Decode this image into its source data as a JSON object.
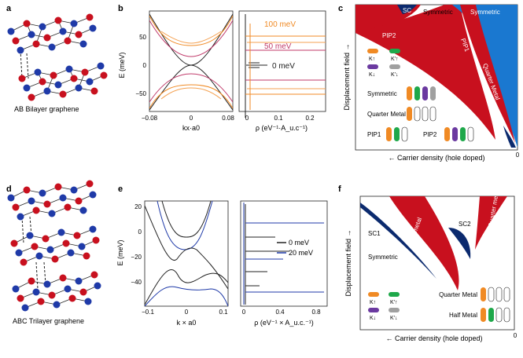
{
  "panels": {
    "a": {
      "label": "a",
      "caption": "AB Bilayer graphene"
    },
    "b": {
      "label": "b",
      "ylabel": "E (meV)",
      "xlabel_left": "kx·a0",
      "xlabel_right": "ρ (eV⁻¹·A_u.c⁻¹)",
      "yticks": [
        "50",
        "0",
        "−50"
      ],
      "xticks_left": [
        "−0.08",
        "0",
        "0.08"
      ],
      "xticks_right": [
        "0",
        "0.1",
        "0.2"
      ],
      "lines": [
        "100 meV",
        "50 meV",
        "0 meV"
      ]
    },
    "c": {
      "label": "c",
      "ylabel": "Displacement field →",
      "xlabel": "← Carrier density (hole doped)",
      "zero": "0",
      "regions": {
        "sc": "SC",
        "symmetric_top": "Symmetric",
        "symmetric_mid": "Symmetric",
        "pip2": "PIP2",
        "pip1": "PIP1",
        "quarter_metal": "Quarter Metal"
      },
      "legend": {
        "k_up": "K↑",
        "kp_up": "K'↑",
        "k_down": "K↓",
        "kp_down": "K'↓",
        "symmetric": "Symmetric",
        "quarter": "Quarter Metal",
        "pip1": "PIP1",
        "pip2": "PIP2"
      }
    },
    "d": {
      "label": "d",
      "caption": "ABC Trilayer graphene"
    },
    "e": {
      "label": "e",
      "ylabel": "E (meV)",
      "xlabel_left": "k × a0",
      "xlabel_right": "ρ (eV⁻¹ × A_u.c.⁻¹)",
      "yticks": [
        "20",
        "0",
        "−20",
        "−40"
      ],
      "xticks_left": [
        "−0.1",
        "0",
        "0.1"
      ],
      "xticks_right": [
        "0",
        "0.4",
        "0.8"
      ],
      "legend": [
        "0 meV",
        "20 meV"
      ]
    },
    "f": {
      "label": "f",
      "ylabel": "Displacement field →",
      "xlabel": "← Carrier density (hole doped)",
      "zero": "0",
      "regions": {
        "sc1": "SC1",
        "sc2": "SC2",
        "symmetric": "Symmetric",
        "half": "Half metal",
        "quarter": "Quarter metal"
      },
      "legend": {
        "k_up": "K↑",
        "kp_up": "K'↑",
        "k_down": "K↓",
        "kp_down": "K'↓",
        "quarter": "Quarter Metal",
        "half": "Half Metal"
      }
    }
  },
  "colors": {
    "red": "#c8101e",
    "blue": "#1f3aa8",
    "navy": "#0b2a6e",
    "lightblue": "#1a78d0",
    "orange": "#f08a24",
    "green": "#1ea84a",
    "purple": "#6b3aa0",
    "gray": "#a0a0a0",
    "pink": "#c03a6a",
    "lightorange": "#f4a050"
  }
}
